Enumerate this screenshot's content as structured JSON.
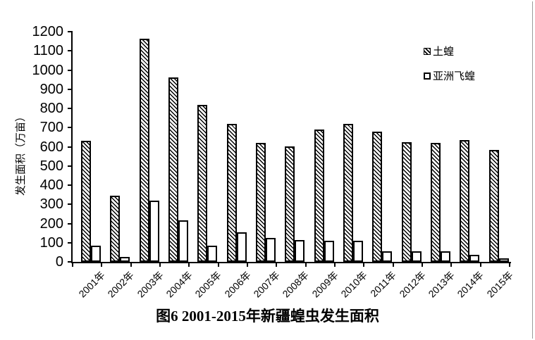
{
  "page": {
    "background": "#ffffff",
    "frame_line_color": "#9b9b9b"
  },
  "figure_caption": "图6 2001-2015年新疆蝗虫发生面积",
  "y_axis": {
    "label": "发生面积（万亩）",
    "ticks": [
      0,
      100,
      200,
      300,
      400,
      500,
      600,
      700,
      800,
      900,
      1000,
      1100,
      1200
    ]
  },
  "x_axis": {
    "labels": [
      "2001年",
      "2002年",
      "2003年",
      "2004年",
      "2005年",
      "2006年",
      "2007年",
      "2008年",
      "2009年",
      "2010年",
      "2011年",
      "2012年",
      "2013年",
      "2014年",
      "2015年"
    ]
  },
  "legend": {
    "items": [
      {
        "label": "土蝗",
        "marker": "hatched-square"
      },
      {
        "label": "亚洲飞蝗",
        "marker": "open-square"
      }
    ]
  },
  "chart_data": {
    "type": "bar",
    "title": "图6 2001-2015年新疆蝗虫发生面积",
    "xlabel": "",
    "ylabel": "发生面积（万亩）",
    "unit": "万亩",
    "categories": [
      "2001年",
      "2002年",
      "2003年",
      "2004年",
      "2005年",
      "2006年",
      "2007年",
      "2008年",
      "2009年",
      "2010年",
      "2011年",
      "2012年",
      "2013年",
      "2014年",
      "2015年"
    ],
    "series": [
      {
        "name": "土蝗",
        "style": "hatched",
        "values": [
          630,
          345,
          1165,
          960,
          820,
          720,
          620,
          600,
          690,
          720,
          680,
          625,
          620,
          635,
          585
        ]
      },
      {
        "name": "亚洲飞蝗",
        "style": "open",
        "values": [
          85,
          25,
          320,
          215,
          85,
          155,
          125,
          115,
          110,
          110,
          55,
          55,
          55,
          35,
          20
        ]
      }
    ],
    "ylim": [
      0,
      1200
    ],
    "ytick_step": 100,
    "grid": false,
    "legend_position": "inside-top-right"
  }
}
